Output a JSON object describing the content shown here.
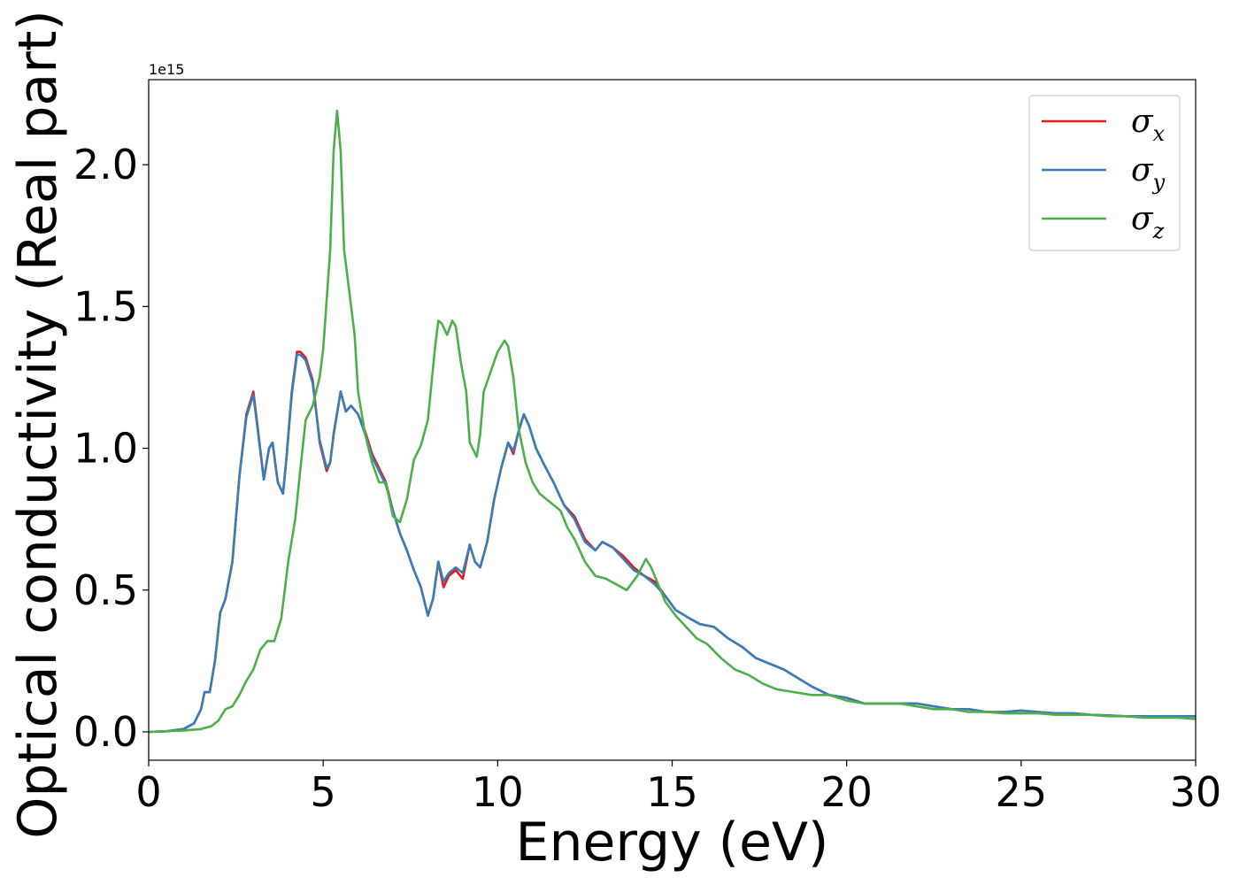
{
  "chart_data": {
    "type": "line",
    "xlabel": "Energy (eV)",
    "ylabel": "Optical conductivity (Real part)",
    "y_offset_label": "1e15",
    "xlim": [
      0,
      30
    ],
    "ylim": [
      -0.1,
      2.3
    ],
    "x_ticks": [
      0,
      5,
      10,
      15,
      20,
      25,
      30
    ],
    "x_tick_labels": [
      "0",
      "5",
      "10",
      "15",
      "20",
      "25",
      "30"
    ],
    "y_ticks": [
      0.0,
      0.5,
      1.0,
      1.5,
      2.0
    ],
    "y_tick_labels": [
      "0.0",
      "0.5",
      "1.0",
      "1.5",
      "2.0"
    ],
    "grid": false,
    "legend_position": "top-right",
    "series": [
      {
        "name": "σx",
        "symbol": "σ",
        "subscript": "x",
        "color": "#e41a1c",
        "x": [
          0,
          0.5,
          1.0,
          1.3,
          1.5,
          1.6,
          1.75,
          1.9,
          2.05,
          2.2,
          2.4,
          2.6,
          2.8,
          3.0,
          3.1,
          3.3,
          3.45,
          3.55,
          3.7,
          3.85,
          3.95,
          4.1,
          4.25,
          4.35,
          4.5,
          4.7,
          4.9,
          5.1,
          5.2,
          5.3,
          5.5,
          5.65,
          5.8,
          6.0,
          6.2,
          6.4,
          6.6,
          6.8,
          7.0,
          7.2,
          7.4,
          7.6,
          7.8,
          8.0,
          8.15,
          8.3,
          8.45,
          8.6,
          8.8,
          9.0,
          9.2,
          9.35,
          9.5,
          9.7,
          9.9,
          10.1,
          10.3,
          10.45,
          10.6,
          10.75,
          10.9,
          11.1,
          11.3,
          11.6,
          11.9,
          12.2,
          12.5,
          12.8,
          13.0,
          13.3,
          13.6,
          13.9,
          14.2,
          14.5,
          14.8,
          15.1,
          15.5,
          15.8,
          16.2,
          16.6,
          17.0,
          17.4,
          17.8,
          18.2,
          18.6,
          19.0,
          19.5,
          20.0,
          20.5,
          21.0,
          21.5,
          22.0,
          22.5,
          23.0,
          23.5,
          24.0,
          24.5,
          25.0,
          25.5,
          26.0,
          26.5,
          27.0,
          27.5,
          28.0,
          28.5,
          29.0,
          29.5,
          30.0
        ],
        "y": [
          0.0,
          0.002,
          0.01,
          0.03,
          0.08,
          0.14,
          0.14,
          0.25,
          0.42,
          0.47,
          0.6,
          0.9,
          1.12,
          1.2,
          1.1,
          0.89,
          1.0,
          1.02,
          0.88,
          0.84,
          0.97,
          1.2,
          1.34,
          1.34,
          1.32,
          1.24,
          1.02,
          0.92,
          0.95,
          1.05,
          1.2,
          1.13,
          1.15,
          1.12,
          1.06,
          0.98,
          0.93,
          0.88,
          0.78,
          0.7,
          0.64,
          0.57,
          0.51,
          0.41,
          0.47,
          0.6,
          0.51,
          0.55,
          0.57,
          0.54,
          0.66,
          0.6,
          0.58,
          0.67,
          0.82,
          0.93,
          1.02,
          0.98,
          1.06,
          1.12,
          1.08,
          1.0,
          0.95,
          0.88,
          0.8,
          0.76,
          0.68,
          0.64,
          0.67,
          0.65,
          0.62,
          0.58,
          0.55,
          0.53,
          0.48,
          0.43,
          0.4,
          0.38,
          0.37,
          0.33,
          0.3,
          0.26,
          0.24,
          0.22,
          0.19,
          0.16,
          0.13,
          0.12,
          0.1,
          0.1,
          0.1,
          0.1,
          0.09,
          0.08,
          0.08,
          0.07,
          0.07,
          0.075,
          0.07,
          0.065,
          0.065,
          0.06,
          0.058,
          0.055,
          0.055,
          0.055,
          0.055,
          0.055
        ]
      },
      {
        "name": "σy",
        "symbol": "σ",
        "subscript": "y",
        "color": "#377eb8",
        "x": [
          0,
          0.5,
          1.0,
          1.3,
          1.5,
          1.6,
          1.75,
          1.9,
          2.05,
          2.2,
          2.4,
          2.6,
          2.8,
          3.0,
          3.1,
          3.3,
          3.45,
          3.55,
          3.7,
          3.85,
          3.95,
          4.1,
          4.25,
          4.35,
          4.5,
          4.7,
          4.9,
          5.1,
          5.2,
          5.3,
          5.5,
          5.65,
          5.8,
          6.0,
          6.2,
          6.4,
          6.6,
          6.8,
          7.0,
          7.2,
          7.4,
          7.6,
          7.8,
          8.0,
          8.15,
          8.3,
          8.45,
          8.6,
          8.8,
          9.0,
          9.2,
          9.35,
          9.5,
          9.7,
          9.9,
          10.1,
          10.3,
          10.45,
          10.6,
          10.75,
          10.9,
          11.1,
          11.3,
          11.6,
          11.9,
          12.2,
          12.5,
          12.8,
          13.0,
          13.3,
          13.6,
          13.9,
          14.2,
          14.5,
          14.8,
          15.1,
          15.5,
          15.8,
          16.2,
          16.6,
          17.0,
          17.4,
          17.8,
          18.2,
          18.6,
          19.0,
          19.5,
          20.0,
          20.5,
          21.0,
          21.5,
          22.0,
          22.5,
          23.0,
          23.5,
          24.0,
          24.5,
          25.0,
          25.5,
          26.0,
          26.5,
          27.0,
          27.5,
          28.0,
          28.5,
          29.0,
          29.5,
          30.0
        ],
        "y": [
          0.0,
          0.002,
          0.01,
          0.03,
          0.08,
          0.14,
          0.14,
          0.25,
          0.42,
          0.47,
          0.6,
          0.9,
          1.11,
          1.19,
          1.09,
          0.89,
          1.0,
          1.02,
          0.88,
          0.84,
          0.97,
          1.19,
          1.33,
          1.33,
          1.31,
          1.23,
          1.03,
          0.93,
          0.95,
          1.05,
          1.2,
          1.13,
          1.15,
          1.12,
          1.05,
          0.97,
          0.92,
          0.87,
          0.78,
          0.7,
          0.64,
          0.57,
          0.51,
          0.41,
          0.47,
          0.6,
          0.53,
          0.56,
          0.58,
          0.56,
          0.66,
          0.6,
          0.58,
          0.67,
          0.82,
          0.93,
          1.02,
          0.99,
          1.06,
          1.12,
          1.08,
          1.0,
          0.95,
          0.88,
          0.8,
          0.75,
          0.67,
          0.64,
          0.67,
          0.65,
          0.61,
          0.57,
          0.55,
          0.52,
          0.48,
          0.43,
          0.4,
          0.38,
          0.37,
          0.33,
          0.3,
          0.26,
          0.24,
          0.22,
          0.19,
          0.16,
          0.13,
          0.12,
          0.1,
          0.1,
          0.1,
          0.1,
          0.09,
          0.08,
          0.08,
          0.07,
          0.07,
          0.075,
          0.07,
          0.065,
          0.065,
          0.06,
          0.058,
          0.055,
          0.055,
          0.055,
          0.055,
          0.055
        ]
      },
      {
        "name": "σz",
        "symbol": "σ",
        "subscript": "z",
        "color": "#4daf4a",
        "x": [
          0,
          1.0,
          1.5,
          1.8,
          2.0,
          2.2,
          2.4,
          2.6,
          2.8,
          3.0,
          3.2,
          3.4,
          3.6,
          3.8,
          4.0,
          4.2,
          4.35,
          4.5,
          4.7,
          4.9,
          5.0,
          5.2,
          5.3,
          5.4,
          5.5,
          5.6,
          5.7,
          5.9,
          6.0,
          6.2,
          6.4,
          6.6,
          6.8,
          7.0,
          7.2,
          7.4,
          7.6,
          7.8,
          8.0,
          8.2,
          8.3,
          8.4,
          8.55,
          8.7,
          8.8,
          8.95,
          9.1,
          9.2,
          9.4,
          9.5,
          9.6,
          9.8,
          10.0,
          10.2,
          10.3,
          10.45,
          10.6,
          10.8,
          11.0,
          11.2,
          11.5,
          11.8,
          12.0,
          12.2,
          12.5,
          12.8,
          13.1,
          13.4,
          13.7,
          14.0,
          14.25,
          14.4,
          14.6,
          14.8,
          15.1,
          15.4,
          15.7,
          16.0,
          16.4,
          16.8,
          17.2,
          17.6,
          18.0,
          18.5,
          19.0,
          19.5,
          20.0,
          20.5,
          21.0,
          21.5,
          22.0,
          22.5,
          23.0,
          23.5,
          24.0,
          24.5,
          25.0,
          25.5,
          26.0,
          26.5,
          27.0,
          27.5,
          28.0,
          28.5,
          29.0,
          29.5,
          30.0
        ],
        "y": [
          0.0,
          0.005,
          0.01,
          0.02,
          0.04,
          0.08,
          0.09,
          0.13,
          0.18,
          0.22,
          0.29,
          0.32,
          0.32,
          0.4,
          0.6,
          0.75,
          0.93,
          1.1,
          1.15,
          1.25,
          1.35,
          1.7,
          2.05,
          2.19,
          2.05,
          1.7,
          1.6,
          1.4,
          1.2,
          1.05,
          0.95,
          0.88,
          0.88,
          0.76,
          0.74,
          0.82,
          0.96,
          1.01,
          1.1,
          1.35,
          1.45,
          1.44,
          1.4,
          1.45,
          1.43,
          1.3,
          1.2,
          1.02,
          0.97,
          1.05,
          1.2,
          1.27,
          1.34,
          1.38,
          1.36,
          1.25,
          1.07,
          0.95,
          0.88,
          0.84,
          0.81,
          0.78,
          0.72,
          0.68,
          0.6,
          0.55,
          0.54,
          0.52,
          0.5,
          0.55,
          0.61,
          0.58,
          0.52,
          0.46,
          0.41,
          0.37,
          0.33,
          0.31,
          0.26,
          0.22,
          0.2,
          0.17,
          0.15,
          0.14,
          0.13,
          0.13,
          0.11,
          0.1,
          0.1,
          0.1,
          0.09,
          0.08,
          0.08,
          0.07,
          0.07,
          0.065,
          0.065,
          0.065,
          0.06,
          0.06,
          0.06,
          0.055,
          0.055,
          0.05,
          0.05,
          0.05,
          0.045
        ]
      }
    ]
  }
}
